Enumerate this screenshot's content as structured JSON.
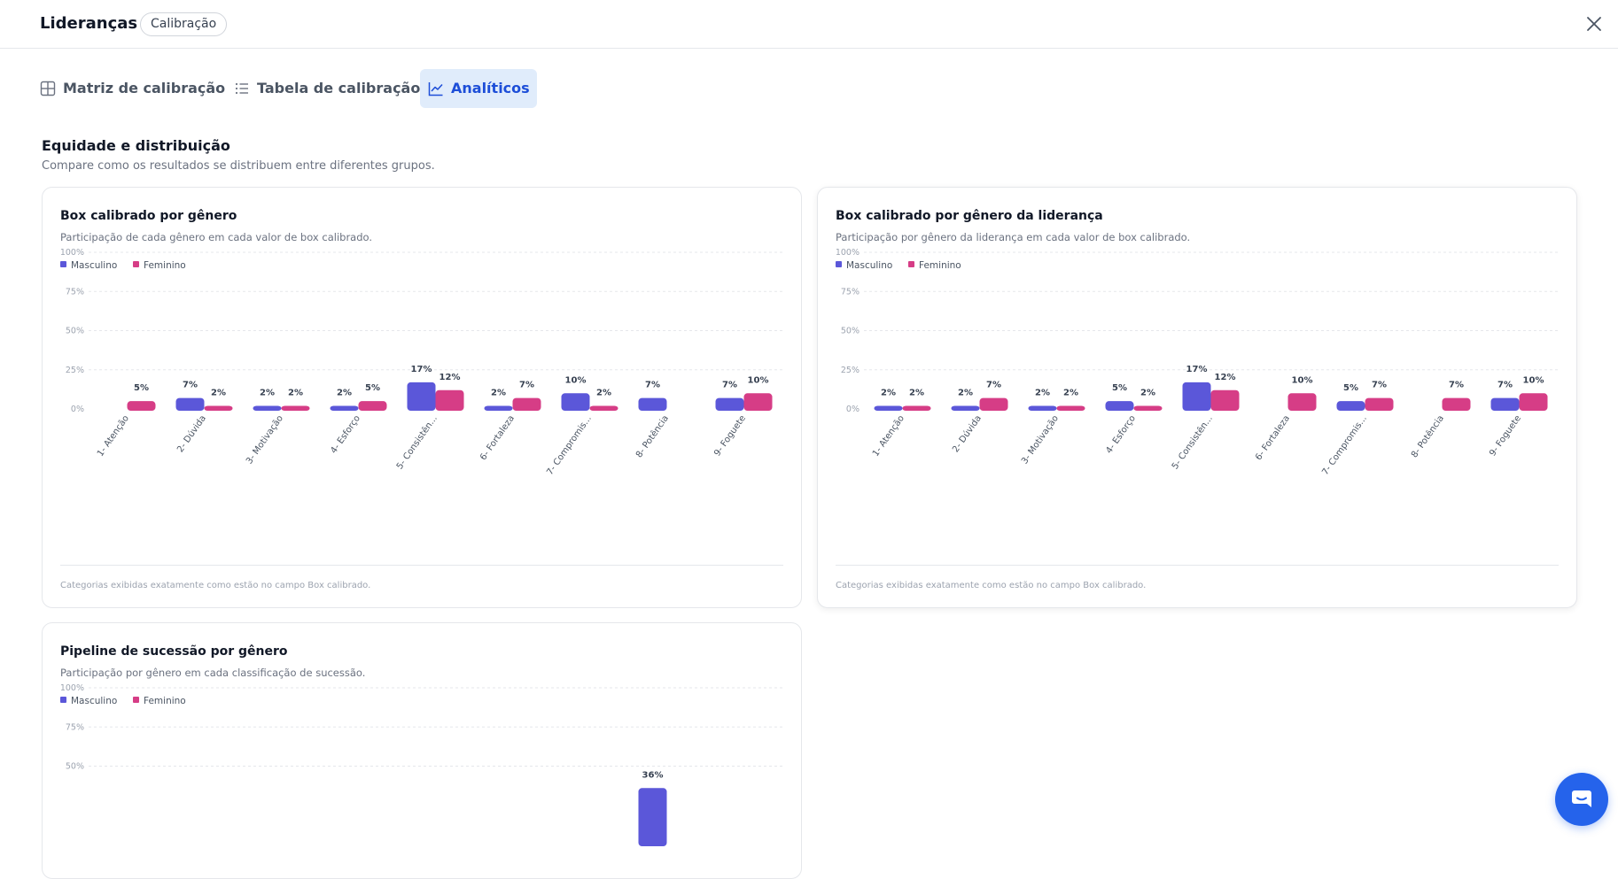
{
  "header": {
    "title": "Lideranças",
    "badge": "Calibração"
  },
  "tabs": [
    {
      "label": "Matriz de calibração",
      "icon": "grid-icon",
      "active": false
    },
    {
      "label": "Tabela de calibração",
      "icon": "list-icon",
      "active": false
    },
    {
      "label": "Analíticos",
      "icon": "line-chart-icon",
      "active": true
    }
  ],
  "section": {
    "title": "Equidade e distribuição",
    "subtitle": "Compare como os resultados se distribuem entre diferentes grupos."
  },
  "colors": {
    "masculino": "#5b57d9",
    "feminino": "#d63d86",
    "accent": "#2563eb"
  },
  "legend": {
    "masculino": "Masculino",
    "feminino": "Feminino"
  },
  "cards": [
    {
      "title": "Box calibrado por gênero",
      "subtitle": "Participação de cada gênero em cada valor de box calibrado.",
      "footer": "Categorias exibidas exatamente como estão no campo Box calibrado."
    },
    {
      "title": "Box calibrado por gênero da liderança",
      "subtitle": "Participação por gênero da liderança em cada valor de box calibrado.",
      "footer": "Categorias exibidas exatamente como estão no campo Box calibrado."
    },
    {
      "title": "Pipeline de sucessão por gênero",
      "subtitle": "Participação por gênero em cada classificação de sucessão."
    }
  ],
  "chart_data": [
    {
      "type": "bar",
      "title": "Box calibrado por gênero",
      "categories": [
        "1- Atenção",
        "2- Dúvida",
        "3- Motivação",
        "4- Esforço",
        "5- Consistên...",
        "6- Fortaleza",
        "7- Compromis...",
        "8- Potência",
        "9- Foguete"
      ],
      "series": [
        {
          "name": "Masculino",
          "values": [
            null,
            7,
            2,
            2,
            17,
            2,
            10,
            7,
            7
          ],
          "labels": [
            "",
            "7%",
            "2%",
            "2%",
            "17%",
            "2%",
            "10%",
            "7%",
            "7%"
          ]
        },
        {
          "name": "Feminino",
          "values": [
            5,
            2,
            2,
            5,
            12,
            7,
            2,
            null,
            10
          ],
          "labels": [
            "5%",
            "2%",
            "2%",
            "5%",
            "12%",
            "7%",
            "2%",
            "",
            "10%"
          ]
        }
      ],
      "yticks": [
        "100%",
        "75%",
        "50%",
        "25%",
        "0%"
      ],
      "ylim": [
        0,
        100
      ],
      "grid": true,
      "legend": "top-left"
    },
    {
      "type": "bar",
      "title": "Box calibrado por gênero da liderança",
      "categories": [
        "1- Atenção",
        "2- Dúvida",
        "3- Motivação",
        "4- Esforço",
        "5- Consistên...",
        "6- Fortaleza",
        "7- Compromis...",
        "8- Potência",
        "9- Foguete"
      ],
      "series": [
        {
          "name": "Masculino",
          "values": [
            2,
            2,
            2,
            5,
            17,
            null,
            5,
            null,
            7
          ],
          "labels": [
            "2%",
            "2%",
            "2%",
            "5%",
            "17%",
            "",
            "5%",
            "",
            "7%"
          ]
        },
        {
          "name": "Feminino",
          "values": [
            2,
            7,
            2,
            2,
            12,
            10,
            7,
            7,
            10
          ],
          "labels": [
            "2%",
            "7%",
            "2%",
            "2%",
            "12%",
            "10%",
            "7%",
            "7%",
            "10%"
          ]
        }
      ],
      "yticks": [
        "100%",
        "75%",
        "50%",
        "25%",
        "0%"
      ],
      "ylim": [
        0,
        100
      ],
      "grid": true,
      "legend": "top-left"
    },
    {
      "type": "bar",
      "title": "Pipeline de sucessão por gênero",
      "categories": [
        "",
        "",
        "",
        "",
        "",
        "",
        "",
        "",
        ""
      ],
      "series": [
        {
          "name": "Masculino",
          "values": [
            null,
            null,
            null,
            null,
            null,
            null,
            null,
            36,
            null
          ],
          "labels": [
            "",
            "",
            "",
            "",
            "",
            "",
            "",
            "36%",
            ""
          ]
        },
        {
          "name": "Feminino",
          "values": [
            null,
            null,
            null,
            null,
            null,
            null,
            null,
            null,
            null
          ],
          "labels": [
            "",
            "",
            "",
            "",
            "",
            "",
            "",
            "",
            ""
          ]
        }
      ],
      "yticks": [
        "100%",
        "75%",
        "50%"
      ],
      "ylim": [
        0,
        100
      ],
      "grid": true,
      "legend": "top-left"
    }
  ]
}
